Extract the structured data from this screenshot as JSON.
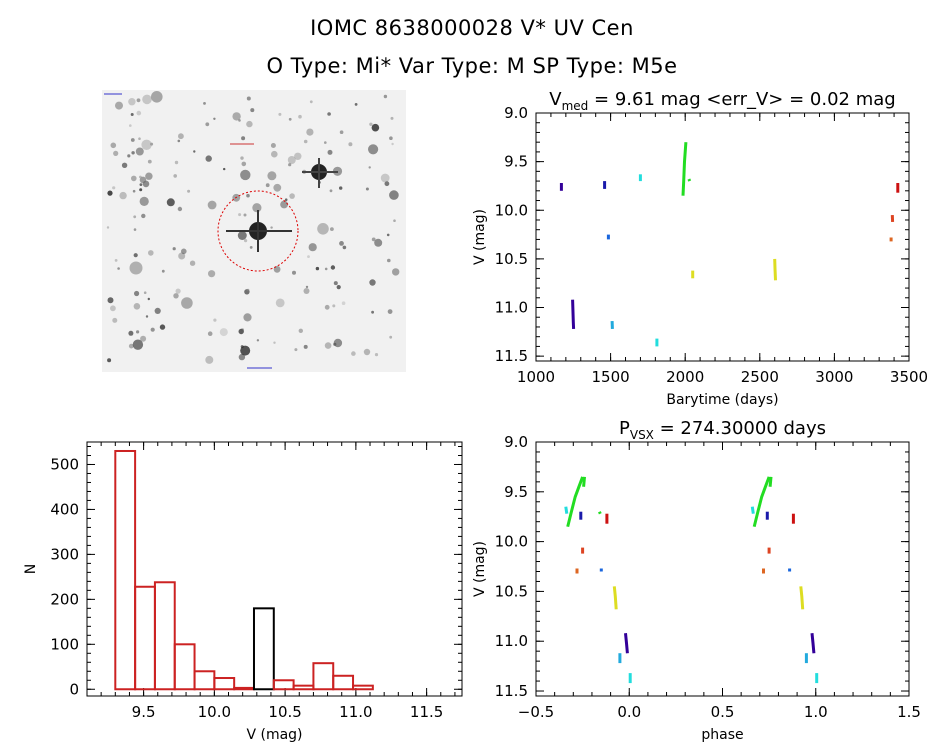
{
  "header": {
    "title_line1": "IOMC 8638000028    V* UV Cen",
    "title_line2": "O Type: Mi*  Var Type: M   SP Type: M5e"
  },
  "sky_image": {
    "description_labels": [
      "target-circle"
    ],
    "circle_color": "#dd0000"
  },
  "chart_data": [
    {
      "id": "lightcurve",
      "type": "scatter",
      "title_main": "V",
      "title_sub": "med",
      "title_rest": " = 9.61 mag <err_V> = 0.02 mag",
      "xlabel": "Barytime (days)",
      "ylabel": "V (mag)",
      "xlim": [
        1000,
        3500
      ],
      "ylim": [
        11.55,
        9.0
      ],
      "xticks": [
        "1000",
        "1500",
        "2000",
        "2500",
        "3000",
        "3500"
      ],
      "xtick_values": [
        1000,
        1500,
        2000,
        2500,
        3000,
        3500
      ],
      "yticks": [
        "9.0",
        "9.5",
        "10.0",
        "10.5",
        "11.0",
        "11.5"
      ],
      "ytick_values": [
        9.0,
        9.5,
        10.0,
        10.5,
        11.0,
        11.5
      ],
      "segments": [
        {
          "color": "#330099",
          "points": [
            [
              1170,
              9.72
            ],
            [
              1170,
              9.8
            ]
          ]
        },
        {
          "color": "#330099",
          "points": [
            [
              1245,
              10.92
            ],
            [
              1248,
              11.05
            ],
            [
              1250,
              11.15
            ],
            [
              1252,
              11.22
            ]
          ]
        },
        {
          "color": "#1a1aaa",
          "points": [
            [
              1460,
              9.7
            ],
            [
              1460,
              9.78
            ]
          ]
        },
        {
          "color": "#1a66dd",
          "points": [
            [
              1485,
              10.25
            ],
            [
              1485,
              10.3
            ]
          ]
        },
        {
          "color": "#22aadd",
          "points": [
            [
              1510,
              11.14
            ],
            [
              1512,
              11.22
            ]
          ]
        },
        {
          "color": "#22dddd",
          "points": [
            [
              1700,
              9.63
            ],
            [
              1700,
              9.7
            ]
          ]
        },
        {
          "color": "#22dddd",
          "points": [
            [
              1810,
              11.32
            ],
            [
              1810,
              11.4
            ]
          ]
        },
        {
          "color": "#22dd22",
          "points": [
            [
              1985,
              9.85
            ],
            [
              1990,
              9.7
            ],
            [
              1995,
              9.5
            ],
            [
              2000,
              9.4
            ],
            [
              2005,
              9.3
            ]
          ]
        },
        {
          "color": "#22dd22",
          "points": [
            [
              2025,
              9.68
            ],
            [
              2030,
              9.7
            ]
          ]
        },
        {
          "color": "#dddd22",
          "points": [
            [
              2050,
              10.62
            ],
            [
              2050,
              10.7
            ]
          ]
        },
        {
          "color": "#dddd22",
          "points": [
            [
              2600,
              10.5
            ],
            [
              2602,
              10.6
            ],
            [
              2605,
              10.72
            ]
          ]
        },
        {
          "color": "#dd6622",
          "points": [
            [
              3380,
              10.28
            ],
            [
              3380,
              10.32
            ]
          ]
        },
        {
          "color": "#dd4422",
          "points": [
            [
              3388,
              10.05
            ],
            [
              3390,
              10.12
            ]
          ]
        },
        {
          "color": "#cc1111",
          "points": [
            [
              3425,
              9.72
            ],
            [
              3425,
              9.82
            ]
          ]
        }
      ]
    },
    {
      "id": "histogram",
      "type": "bar",
      "xlabel": "V (mag)",
      "ylabel": "N",
      "xlim": [
        9.1,
        11.75
      ],
      "ylim": [
        -15,
        550
      ],
      "xticks": [
        "9.5",
        "10.0",
        "10.5",
        "11.0",
        "11.5"
      ],
      "xtick_values": [
        9.5,
        10.0,
        10.5,
        11.0,
        11.5
      ],
      "yticks": [
        "0",
        "100",
        "200",
        "300",
        "400",
        "500"
      ],
      "ytick_values": [
        0,
        100,
        200,
        300,
        400,
        500
      ],
      "bin_width": 0.14,
      "bins": [
        {
          "left": 9.3,
          "value": 530,
          "color": "#cc2222"
        },
        {
          "left": 9.44,
          "value": 228,
          "color": "#cc2222"
        },
        {
          "left": 9.58,
          "value": 238,
          "color": "#cc2222"
        },
        {
          "left": 9.72,
          "value": 100,
          "color": "#cc2222"
        },
        {
          "left": 9.86,
          "value": 40,
          "color": "#cc2222"
        },
        {
          "left": 10.0,
          "value": 25,
          "color": "#cc2222"
        },
        {
          "left": 10.14,
          "value": 3,
          "color": "#cc2222"
        },
        {
          "left": 10.28,
          "value": 180,
          "color": "#000000"
        },
        {
          "left": 10.42,
          "value": 20,
          "color": "#cc2222"
        },
        {
          "left": 10.56,
          "value": 8,
          "color": "#cc2222"
        },
        {
          "left": 10.7,
          "value": 58,
          "color": "#cc2222"
        },
        {
          "left": 10.84,
          "value": 30,
          "color": "#cc2222"
        },
        {
          "left": 10.98,
          "value": 8,
          "color": "#cc2222"
        }
      ]
    },
    {
      "id": "phased",
      "type": "scatter",
      "title_main": "P",
      "title_sub": "VSX",
      "title_rest": " = 274.30000 days",
      "xlabel": "phase",
      "ylabel": "V (mag)",
      "xlim": [
        -0.5,
        1.5
      ],
      "ylim": [
        11.55,
        9.0
      ],
      "xticks": [
        "−0.5",
        "0.0",
        "0.5",
        "1.0",
        "1.5"
      ],
      "xtick_values": [
        -0.5,
        0.0,
        0.5,
        1.0,
        1.5
      ],
      "yticks": [
        "9.0",
        "9.5",
        "10.0",
        "10.5",
        "11.0",
        "11.5"
      ],
      "ytick_values": [
        9.0,
        9.5,
        10.0,
        10.5,
        11.0,
        11.5
      ],
      "segments": [
        {
          "color": "#22dd22",
          "points": [
            [
              -0.33,
              9.85
            ],
            [
              -0.31,
              9.7
            ],
            [
              -0.29,
              9.55
            ],
            [
              -0.27,
              9.45
            ],
            [
              -0.25,
              9.35
            ]
          ]
        },
        {
          "color": "#22dd22",
          "points": [
            [
              -0.24,
              9.35
            ],
            [
              -0.245,
              9.45
            ]
          ]
        },
        {
          "color": "#22dd22",
          "points": [
            [
              -0.16,
              9.7
            ],
            [
              -0.155,
              9.72
            ]
          ]
        },
        {
          "color": "#22dddd",
          "points": [
            [
              -0.34,
              9.65
            ],
            [
              -0.335,
              9.72
            ]
          ]
        },
        {
          "color": "#1a1aaa",
          "points": [
            [
              -0.26,
              9.7
            ],
            [
              -0.26,
              9.78
            ]
          ]
        },
        {
          "color": "#cc1111",
          "points": [
            [
              -0.12,
              9.72
            ],
            [
              -0.12,
              9.82
            ]
          ]
        },
        {
          "color": "#dd4422",
          "points": [
            [
              -0.25,
              10.06
            ],
            [
              -0.25,
              10.12
            ]
          ]
        },
        {
          "color": "#dd6622",
          "points": [
            [
              -0.28,
              10.27
            ],
            [
              -0.28,
              10.32
            ]
          ]
        },
        {
          "color": "#1a66dd",
          "points": [
            [
              -0.15,
              10.27
            ],
            [
              -0.15,
              10.3
            ]
          ]
        },
        {
          "color": "#dddd22",
          "points": [
            [
              -0.08,
              10.45
            ],
            [
              -0.075,
              10.55
            ],
            [
              -0.07,
              10.68
            ]
          ]
        },
        {
          "color": "#330099",
          "points": [
            [
              -0.02,
              10.92
            ],
            [
              -0.015,
              11.02
            ],
            [
              -0.01,
              11.12
            ]
          ]
        },
        {
          "color": "#22aadd",
          "points": [
            [
              -0.05,
              11.12
            ],
            [
              -0.05,
              11.22
            ]
          ]
        },
        {
          "color": "#22dddd",
          "points": [
            [
              0.005,
              11.32
            ],
            [
              0.005,
              11.42
            ]
          ]
        },
        {
          "color": "#22dd22",
          "points": [
            [
              0.67,
              9.85
            ],
            [
              0.69,
              9.7
            ],
            [
              0.71,
              9.55
            ],
            [
              0.73,
              9.45
            ],
            [
              0.75,
              9.35
            ]
          ]
        },
        {
          "color": "#22dd22",
          "points": [
            [
              0.76,
              9.35
            ],
            [
              0.755,
              9.45
            ]
          ]
        },
        {
          "color": "#22dddd",
          "points": [
            [
              0.66,
              9.65
            ],
            [
              0.665,
              9.72
            ]
          ]
        },
        {
          "color": "#1a1aaa",
          "points": [
            [
              0.74,
              9.7
            ],
            [
              0.74,
              9.78
            ]
          ]
        },
        {
          "color": "#cc1111",
          "points": [
            [
              0.88,
              9.72
            ],
            [
              0.88,
              9.82
            ]
          ]
        },
        {
          "color": "#dd4422",
          "points": [
            [
              0.75,
              10.06
            ],
            [
              0.75,
              10.12
            ]
          ]
        },
        {
          "color": "#dd6622",
          "points": [
            [
              0.72,
              10.27
            ],
            [
              0.72,
              10.32
            ]
          ]
        },
        {
          "color": "#1a66dd",
          "points": [
            [
              0.86,
              10.27
            ],
            [
              0.86,
              10.3
            ]
          ]
        },
        {
          "color": "#dddd22",
          "points": [
            [
              0.92,
              10.45
            ],
            [
              0.925,
              10.55
            ],
            [
              0.93,
              10.68
            ]
          ]
        },
        {
          "color": "#330099",
          "points": [
            [
              0.98,
              10.92
            ],
            [
              0.985,
              11.02
            ],
            [
              0.99,
              11.12
            ]
          ]
        },
        {
          "color": "#22aadd",
          "points": [
            [
              0.95,
              11.12
            ],
            [
              0.95,
              11.22
            ]
          ]
        },
        {
          "color": "#22dddd",
          "points": [
            [
              1.005,
              11.32
            ],
            [
              1.005,
              11.42
            ]
          ]
        }
      ]
    }
  ]
}
